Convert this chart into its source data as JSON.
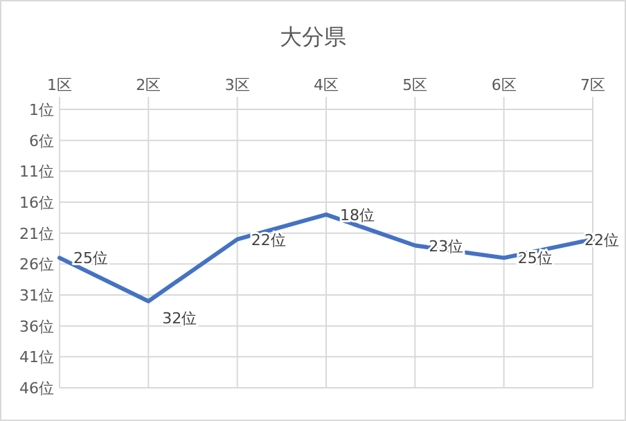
{
  "chart_data": {
    "type": "line",
    "title": "大分県",
    "categories": [
      "1区",
      "2区",
      "3区",
      "4区",
      "5区",
      "6区",
      "7区"
    ],
    "series": [
      {
        "color": "#4472c4",
        "values": [
          25,
          32,
          22,
          18,
          23,
          25,
          22
        ],
        "value_labels": [
          "25位",
          "32位",
          "22位",
          "18位",
          "23位",
          "25位",
          "22位"
        ]
      }
    ],
    "ylim": [
      46,
      1
    ],
    "yticks": [
      {
        "value": 1,
        "label": "1位"
      },
      {
        "value": 6,
        "label": "6位"
      },
      {
        "value": 11,
        "label": "11位"
      },
      {
        "value": 16,
        "label": "16位"
      },
      {
        "value": 21,
        "label": "21位"
      },
      {
        "value": 26,
        "label": "26位"
      },
      {
        "value": 31,
        "label": "31位"
      },
      {
        "value": 36,
        "label": "36位"
      },
      {
        "value": 41,
        "label": "41位"
      },
      {
        "value": 46,
        "label": "46位"
      }
    ],
    "grid": true,
    "marker": "none",
    "line_style": "solid"
  }
}
